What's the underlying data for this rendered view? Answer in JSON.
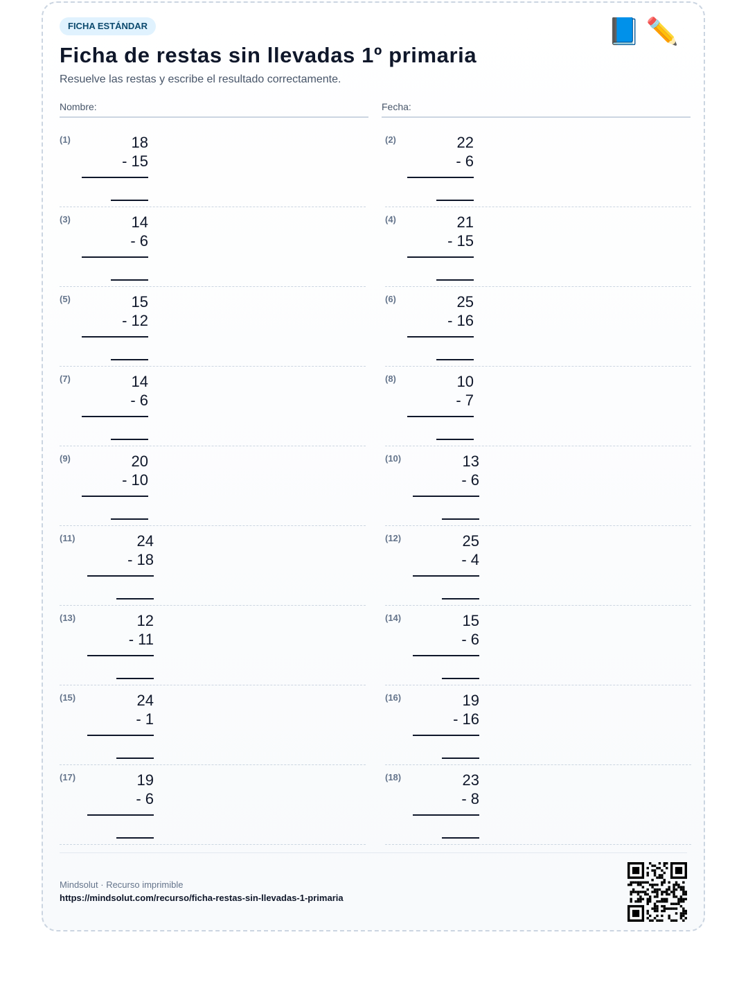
{
  "header": {
    "badge": "FICHA ESTÁNDAR",
    "icons": [
      "blue-book-icon",
      "pencil-icon"
    ],
    "title": "Ficha de restas sin llevadas 1º primaria",
    "subtitle": "Resuelve las restas y escribe el resultado correctamente."
  },
  "fields": {
    "name_label": "Nombre:",
    "date_label": "Fecha:"
  },
  "problems": [
    {
      "label": "(1)",
      "top": "18",
      "bottom": "- 15"
    },
    {
      "label": "(2)",
      "top": "22",
      "bottom": "- 6"
    },
    {
      "label": "(3)",
      "top": "14",
      "bottom": "- 6"
    },
    {
      "label": "(4)",
      "top": "21",
      "bottom": "- 15"
    },
    {
      "label": "(5)",
      "top": "15",
      "bottom": "- 12"
    },
    {
      "label": "(6)",
      "top": "25",
      "bottom": "- 16"
    },
    {
      "label": "(7)",
      "top": "14",
      "bottom": "- 6"
    },
    {
      "label": "(8)",
      "top": "10",
      "bottom": "- 7"
    },
    {
      "label": "(9)",
      "top": "20",
      "bottom": "- 10"
    },
    {
      "label": "(10)",
      "top": "13",
      "bottom": "- 6"
    },
    {
      "label": "(11)",
      "top": "24",
      "bottom": "- 18"
    },
    {
      "label": "(12)",
      "top": "25",
      "bottom": "- 4"
    },
    {
      "label": "(13)",
      "top": "12",
      "bottom": "- 11"
    },
    {
      "label": "(14)",
      "top": "15",
      "bottom": "- 6"
    },
    {
      "label": "(15)",
      "top": "24",
      "bottom": "- 1"
    },
    {
      "label": "(16)",
      "top": "19",
      "bottom": "- 16"
    },
    {
      "label": "(17)",
      "top": "19",
      "bottom": "- 6"
    },
    {
      "label": "(18)",
      "top": "23",
      "bottom": "- 8"
    }
  ],
  "footer": {
    "brand": "Mindsolut · Recurso imprimible",
    "url": "https://mindsolut.com/recurso/ficha-restas-sin-llevadas-1-primaria",
    "qr_icon": "qr-code-icon"
  }
}
